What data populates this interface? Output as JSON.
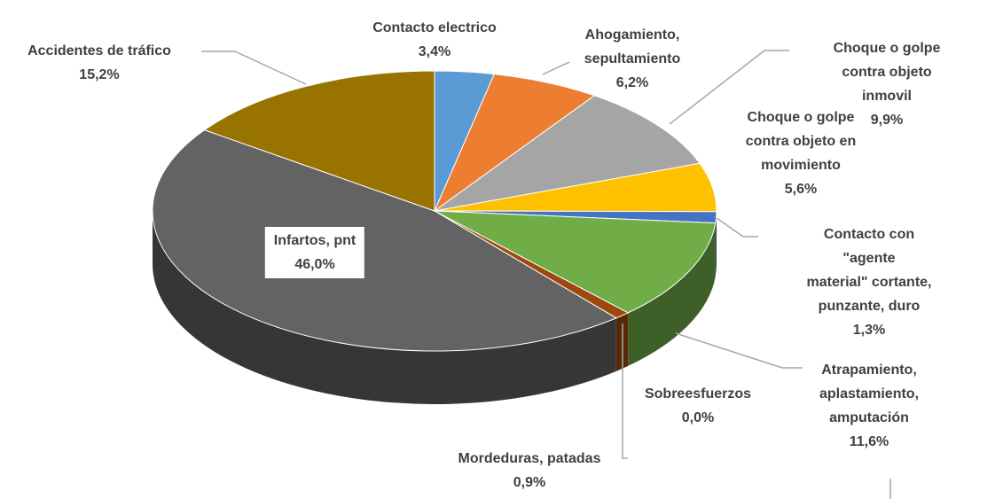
{
  "chart_data": {
    "type": "pie3d",
    "categories": [
      "Contacto electrico",
      "Ahogamiento,\nsepultamiento",
      "Choque o golpe\ncontra objeto inmovil",
      "Choque o golpe\ncontra objeto en\nmovimiento",
      "Contacto con \"agente\nmaterial\" cortante,\npunzante, duro",
      "Atrapamiento,\naplastamiento,\namputación",
      "Sobreesfuerzos",
      "Mordeduras, patadas",
      "Infartos, pnt",
      "Accidentes de tráfico"
    ],
    "values": [
      3.4,
      6.2,
      9.9,
      5.6,
      1.3,
      11.6,
      0.0,
      0.9,
      46.0,
      15.2
    ],
    "value_labels": [
      "3,4%",
      "6,2%",
      "9,9%",
      "5,6%",
      "1,3%",
      "11,6%",
      "0,0%",
      "0,9%",
      "46,0%",
      "15,2%"
    ],
    "colors": [
      "#5b9bd5",
      "#ed7d31",
      "#a5a5a5",
      "#ffc000",
      "#4472c4",
      "#70ad47",
      "#264478",
      "#9e480e",
      "#636363",
      "#997300"
    ]
  }
}
